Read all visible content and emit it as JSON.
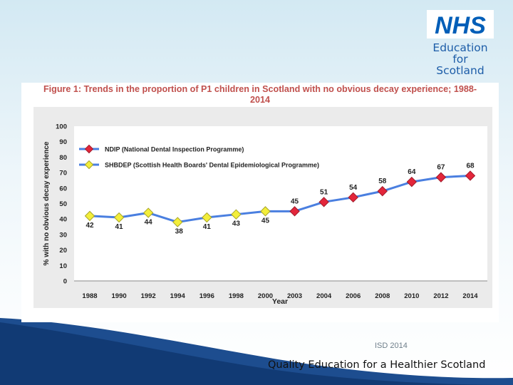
{
  "logo": {
    "brand": "NHS",
    "line1": "Education",
    "line2": "for",
    "line3": "Scotland"
  },
  "colors": {
    "nhs_blue": "#005eb8",
    "title_red": "#c0504d",
    "line_blue": "#4a7fe0",
    "marker_red": "#e3263b",
    "marker_yellow": "#f3ee3a",
    "wave_navy": "#113a74"
  },
  "chart_data": {
    "type": "line",
    "title": "Figure 1: Trends in the proportion of P1 children in Scotland with no obvious decay experience; 1988-2014",
    "title_line1": "Figure 1: Trends in the proportion of P1 children in Scotland with no obvious decay experience; 1988-",
    "title_line2": "2014",
    "xlabel": "Year",
    "ylabel": "% with no obvious decay experience",
    "categories": [
      "1988",
      "1990",
      "1992",
      "1994",
      "1996",
      "1998",
      "2000",
      "2003",
      "2004",
      "2006",
      "2008",
      "2010",
      "2012",
      "2014"
    ],
    "ylim": [
      0,
      100
    ],
    "yticks": [
      0,
      10,
      20,
      30,
      40,
      50,
      60,
      70,
      80,
      90,
      100
    ],
    "series": [
      {
        "name": "NDIP (National Dental Inspection Programme)",
        "marker": "red-diamond",
        "values": [
          null,
          null,
          null,
          null,
          null,
          null,
          null,
          45,
          51,
          54,
          58,
          64,
          67,
          68
        ]
      },
      {
        "name": "SHBDEP (Scottish Health Boards' Dental Epidemiological Programme)",
        "marker": "yellow-diamond",
        "values": [
          42,
          41,
          44,
          38,
          41,
          43,
          45,
          null,
          null,
          null,
          null,
          null,
          null,
          null
        ]
      }
    ],
    "legend_position": "top-left"
  },
  "footer": {
    "source": "ISD 2014",
    "tagline": "Quality Education for a Healthier Scotland"
  }
}
